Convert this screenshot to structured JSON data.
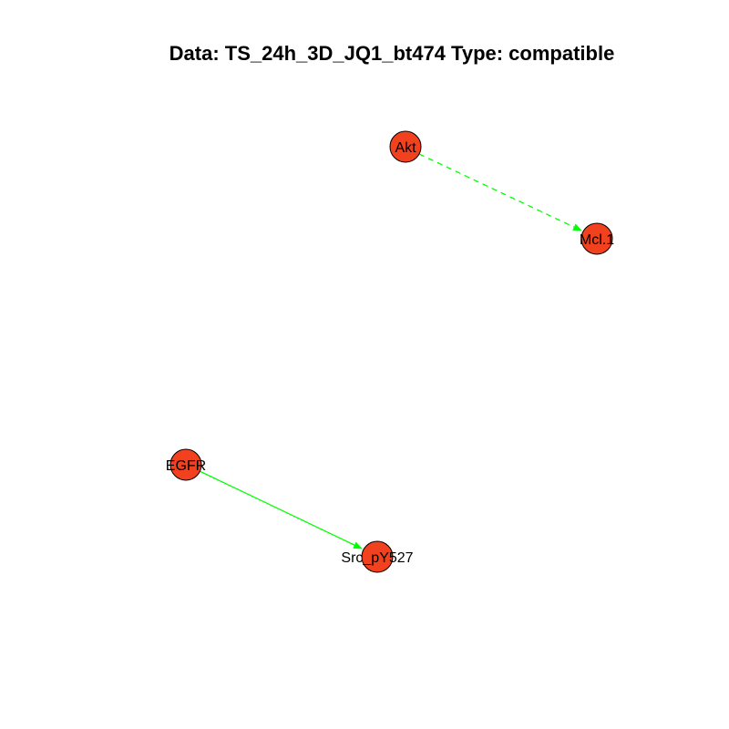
{
  "title": "Data: TS_24h_3D_JQ1_bt474 Type: compatible",
  "colors": {
    "node_fill": "#f2411f",
    "node_stroke": "#000000",
    "edge": "#00ff00",
    "background": "#ffffff"
  },
  "nodes": [
    {
      "id": "akt",
      "label": "Akt"
    },
    {
      "id": "mcl1",
      "label": "Mcl.1"
    },
    {
      "id": "egfr",
      "label": "EGFR"
    },
    {
      "id": "src",
      "label": "Src_pY527"
    }
  ],
  "edges": [
    {
      "from": "akt",
      "to": "mcl1",
      "style": "dashed"
    },
    {
      "from": "egfr",
      "to": "src",
      "style": "solid"
    }
  ]
}
